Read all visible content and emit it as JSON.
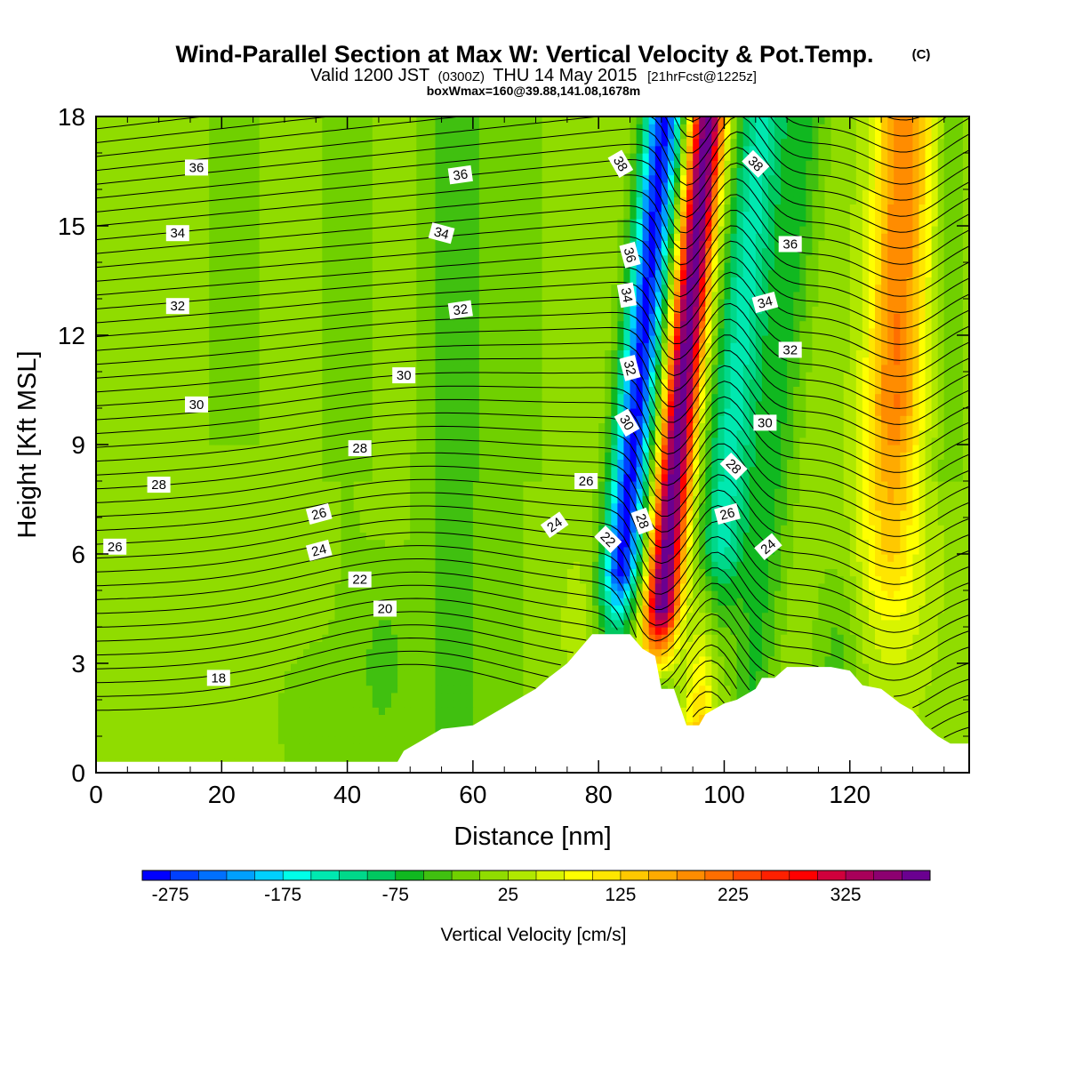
{
  "header": {
    "title": "Wind-Parallel Section at Max W: Vertical Velocity & Pot.Temp.",
    "copyright": "(C)",
    "valid_prefix": "Valid 1200 JST",
    "valid_utc": "(0300Z)",
    "valid_suffix": "THU 14 May 2015",
    "forecast": "[21hrFcst@1225z]",
    "box": "boxWmax=160@39.88,141.08,1678m"
  },
  "chart_data": {
    "type": "heatmap",
    "xlabel": "Distance [nm]",
    "ylabel": "Height [Kft MSL]",
    "xlim": [
      0,
      139
    ],
    "ylim": [
      0,
      18
    ],
    "xticks": [
      "0",
      "20",
      "40",
      "60",
      "80",
      "100",
      "120"
    ],
    "yticks": [
      "0",
      "3",
      "6",
      "9",
      "12",
      "15",
      "18"
    ],
    "colorbar": {
      "label": "Vertical Velocity [cm/s]",
      "tick_labels": [
        "-275",
        "-175",
        "-75",
        "25",
        "125",
        "225",
        "325"
      ],
      "levels": [
        -300,
        -275,
        -250,
        -225,
        -200,
        -175,
        -150,
        -125,
        -100,
        -75,
        -50,
        -25,
        0,
        25,
        50,
        75,
        100,
        125,
        150,
        175,
        200,
        225,
        250,
        275,
        300,
        325,
        350,
        375,
        400
      ],
      "colors": [
        "#0000ff",
        "#0040ff",
        "#0070ff",
        "#00a0ff",
        "#00d0ff",
        "#00ffe8",
        "#00e8b0",
        "#00d88a",
        "#00c860",
        "#10b820",
        "#40c010",
        "#70d000",
        "#90dc00",
        "#b0e800",
        "#d8f400",
        "#ffff00",
        "#ffe600",
        "#ffc800",
        "#ffaa00",
        "#ff8c00",
        "#ff6e00",
        "#ff4800",
        "#ff2000",
        "#ff0000",
        "#d0003c",
        "#a8005a",
        "#8c0070",
        "#6a0090"
      ]
    },
    "vertical_velocity_features": [
      {
        "kind": "downdraft",
        "x_center_nm": 84,
        "min_cm_s": -275
      },
      {
        "kind": "updraft",
        "x_center_nm": 94,
        "max_cm_s": 325
      },
      {
        "kind": "downdraft",
        "x_center_nm": 103,
        "min_cm_s": -175
      },
      {
        "kind": "updraft",
        "x_center_nm": 128,
        "max_cm_s": 175
      }
    ],
    "terrain": [
      [
        0,
        0.3
      ],
      [
        48,
        0.3
      ],
      [
        49,
        0.6
      ],
      [
        52,
        0.9
      ],
      [
        55,
        1.2
      ],
      [
        60,
        1.3
      ],
      [
        65,
        1.8
      ],
      [
        67,
        2
      ],
      [
        70,
        2.3
      ],
      [
        72,
        2.6
      ],
      [
        75,
        3
      ],
      [
        77,
        3.4
      ],
      [
        79,
        3.8
      ],
      [
        82,
        3.8
      ],
      [
        85,
        3.8
      ],
      [
        87,
        3.4
      ],
      [
        89,
        3.2
      ],
      [
        90,
        2.3
      ],
      [
        92,
        2.3
      ],
      [
        94,
        1.3
      ],
      [
        96,
        1.3
      ],
      [
        97,
        1.6
      ],
      [
        100,
        1.9
      ],
      [
        102,
        2
      ],
      [
        105,
        2.3
      ],
      [
        106,
        2.6
      ],
      [
        108,
        2.6
      ],
      [
        110,
        2.9
      ],
      [
        115,
        2.9
      ],
      [
        117,
        2.9
      ],
      [
        120,
        2.8
      ],
      [
        122,
        2.4
      ],
      [
        125,
        2.3
      ],
      [
        128,
        1.9
      ],
      [
        130,
        1.7
      ],
      [
        132,
        1.3
      ],
      [
        134,
        1
      ],
      [
        136,
        0.8
      ],
      [
        139,
        0.8
      ]
    ],
    "theta_contour_labels": [
      {
        "text": "36",
        "x": 16,
        "y": 16.6,
        "angle": 0
      },
      {
        "text": "34",
        "x": 13,
        "y": 14.8,
        "angle": 0
      },
      {
        "text": "32",
        "x": 13,
        "y": 12.8,
        "angle": 0
      },
      {
        "text": "30",
        "x": 16,
        "y": 10.1,
        "angle": 0
      },
      {
        "text": "28",
        "x": 10,
        "y": 7.9,
        "angle": 0
      },
      {
        "text": "26",
        "x": 3,
        "y": 6.2,
        "angle": 0
      },
      {
        "text": "18",
        "x": 19.5,
        "y": 2.6,
        "angle": 0
      },
      {
        "text": "36",
        "x": 58,
        "y": 16.4,
        "angle": -8
      },
      {
        "text": "34",
        "x": 55,
        "y": 14.8,
        "angle": 15
      },
      {
        "text": "32",
        "x": 58,
        "y": 12.7,
        "angle": -8
      },
      {
        "text": "30",
        "x": 49,
        "y": 10.9,
        "angle": 0
      },
      {
        "text": "28",
        "x": 42,
        "y": 8.9,
        "angle": 0
      },
      {
        "text": "26",
        "x": 35.5,
        "y": 7.1,
        "angle": -15
      },
      {
        "text": "24",
        "x": 35.5,
        "y": 6.1,
        "angle": -15
      },
      {
        "text": "22",
        "x": 42,
        "y": 5.3,
        "angle": 0
      },
      {
        "text": "20",
        "x": 46,
        "y": 4.5,
        "angle": 0
      },
      {
        "text": "26",
        "x": 78,
        "y": 8.0,
        "angle": 0
      },
      {
        "text": "24",
        "x": 73,
        "y": 6.8,
        "angle": -35
      },
      {
        "text": "22",
        "x": 81.5,
        "y": 6.4,
        "angle": 45
      },
      {
        "text": "38",
        "x": 83.5,
        "y": 16.7,
        "angle": 60
      },
      {
        "text": "36",
        "x": 85,
        "y": 14.2,
        "angle": 75
      },
      {
        "text": "34",
        "x": 84.5,
        "y": 13.1,
        "angle": 80
      },
      {
        "text": "32",
        "x": 85,
        "y": 11.1,
        "angle": 75
      },
      {
        "text": "30",
        "x": 84.5,
        "y": 9.6,
        "angle": 60
      },
      {
        "text": "28",
        "x": 87,
        "y": 6.9,
        "angle": 70
      },
      {
        "text": "38",
        "x": 105,
        "y": 16.7,
        "angle": 45
      },
      {
        "text": "36",
        "x": 110.5,
        "y": 14.5,
        "angle": 0
      },
      {
        "text": "34",
        "x": 106.5,
        "y": 12.9,
        "angle": -15
      },
      {
        "text": "32",
        "x": 110.5,
        "y": 11.6,
        "angle": 0
      },
      {
        "text": "30",
        "x": 106.5,
        "y": 9.6,
        "angle": 0
      },
      {
        "text": "28",
        "x": 101.5,
        "y": 8.4,
        "angle": 45
      },
      {
        "text": "26",
        "x": 100.5,
        "y": 7.1,
        "angle": -15
      },
      {
        "text": "24",
        "x": 107,
        "y": 6.2,
        "angle": -40
      }
    ]
  }
}
